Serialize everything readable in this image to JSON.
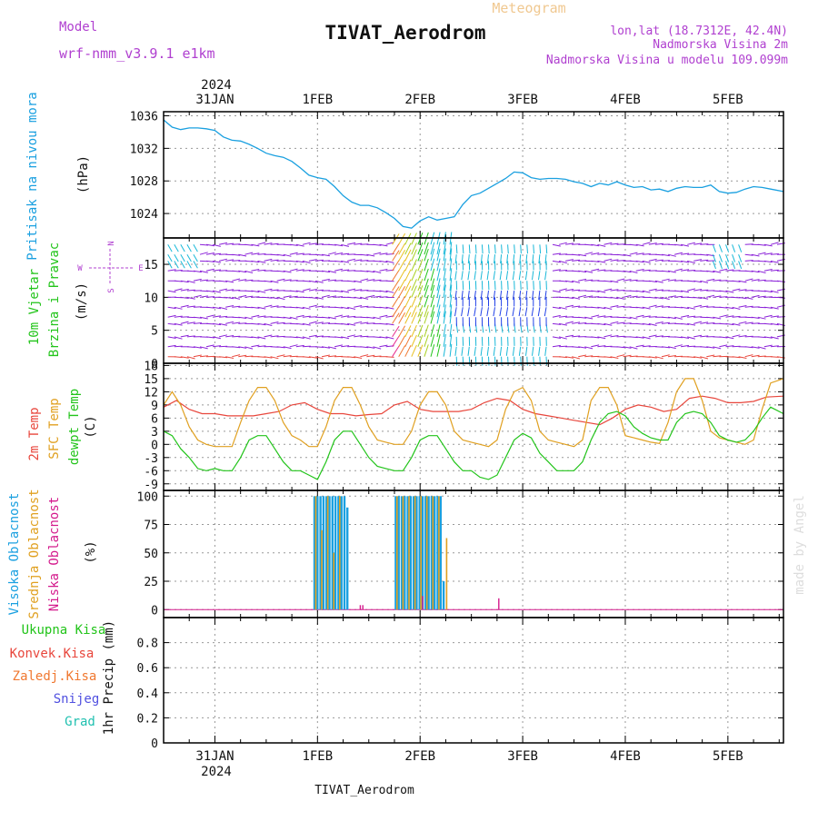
{
  "header": {
    "meteogram_label": "Meteogram",
    "title": "TIVAT_Aerodrom",
    "model_label": "Model",
    "model_value": "wrf-nmm_v3.9.1 e1km",
    "lonlat": "lon,lat (18.7312E, 42.4N)",
    "elevation": "Nadmorska Visina 2m",
    "model_elevation": "Nadmorska Visina u modelu 109.099m",
    "footer_station": "TIVAT_Aerodrom",
    "credit": "made by Angel"
  },
  "colors": {
    "pressure": "#1aa0e0",
    "temp2m": "#e8463c",
    "sfc": "#e0a020",
    "dewpt": "#22c41a",
    "high_cloud": "#1aa0e0",
    "mid_cloud": "#e0a020",
    "low_cloud": "#d41a8c",
    "wind_purple": "#8a20d8",
    "wind_cyan": "#18b8d8",
    "wind_blue": "#2040e8"
  },
  "time_axis": {
    "year": "2024",
    "ticks": [
      "31JAN",
      "1FEB",
      "2FEB",
      "3FEB",
      "4FEB",
      "5FEB"
    ],
    "tick_hours": [
      12,
      36,
      60,
      84,
      108,
      132
    ],
    "range_hours": [
      0,
      145
    ]
  },
  "chart_data": [
    {
      "id": "pressure",
      "type": "line",
      "ylabel_left": "Pritisak na nivou mora",
      "ylabel_unit": "(hPa)",
      "ylim": [
        1021,
        1036.5
      ],
      "yticks": [
        1024,
        1028,
        1032,
        1036
      ],
      "grid": true,
      "series": [
        {
          "x": [
            0,
            2,
            4,
            6,
            8,
            10,
            12,
            14,
            16,
            18,
            20,
            22,
            24,
            26,
            28,
            30,
            32,
            34,
            36,
            38,
            40,
            42,
            44,
            46,
            48,
            50,
            52,
            54,
            56,
            58,
            60,
            62,
            64,
            66,
            68,
            70,
            72,
            74,
            76,
            78,
            80,
            82,
            84,
            86,
            88,
            90,
            92,
            94,
            96,
            98,
            100,
            102,
            104,
            106,
            108,
            110,
            112,
            114,
            116,
            118,
            120,
            122,
            124,
            126,
            128,
            130,
            132,
            134,
            136,
            138,
            140,
            142,
            145
          ],
          "values": [
            1035.5,
            1034.6,
            1034.3,
            1034.5,
            1034.5,
            1034.4,
            1034.2,
            1033.4,
            1033.0,
            1032.9,
            1032.5,
            1032.0,
            1031.4,
            1031.1,
            1030.9,
            1030.4,
            1029.6,
            1028.7,
            1028.4,
            1028.2,
            1027.3,
            1026.2,
            1025.4,
            1025.0,
            1025.0,
            1024.7,
            1024.1,
            1023.4,
            1022.4,
            1022.2,
            1023.1,
            1023.6,
            1023.2,
            1023.4,
            1023.6,
            1025.1,
            1026.2,
            1026.5,
            1027.1,
            1027.7,
            1028.3,
            1029.1,
            1029.0,
            1028.4,
            1028.2,
            1028.3,
            1028.3,
            1028.2,
            1027.9,
            1027.7,
            1027.3,
            1027.7,
            1027.5,
            1027.9,
            1027.5,
            1027.2,
            1027.3,
            1026.9,
            1027.0,
            1026.7,
            1027.1,
            1027.3,
            1027.2,
            1027.2,
            1027.5,
            1026.7,
            1026.5,
            1026.6,
            1027.0,
            1027.3,
            1027.2,
            1027.0,
            1026.7
          ]
        }
      ]
    },
    {
      "id": "wind",
      "type": "scatter",
      "ylabel_left": "10m Vjetar",
      "ylabel_left2": "Brzina i Pravac",
      "ylabel_unit": "(m/s)",
      "compass_n": "N",
      "compass_s": "S",
      "compass_w": "W",
      "compass_e": "E",
      "ylim": [
        0,
        19
      ],
      "yticks": [
        0,
        5,
        10,
        15
      ],
      "grid": true
    },
    {
      "id": "temperature",
      "type": "line",
      "ylabel_1": "2m Temp",
      "ylabel_2": "SFC Temp",
      "ylabel_3": "dewpt Temp",
      "ylabel_unit": "(C)",
      "ylim": [
        -10.5,
        18.5
      ],
      "yticks": [
        -9,
        -6,
        -3,
        0,
        3,
        6,
        9,
        12,
        15,
        18
      ],
      "grid": true,
      "series": [
        {
          "name": "2m Temp",
          "x": [
            0,
            3,
            6,
            9,
            12,
            15,
            18,
            21,
            24,
            27,
            30,
            33,
            36,
            39,
            42,
            45,
            48,
            51,
            54,
            57,
            60,
            63,
            66,
            69,
            72,
            75,
            78,
            81,
            84,
            87,
            90,
            93,
            96,
            99,
            102,
            105,
            108,
            111,
            114,
            117,
            120,
            123,
            126,
            129,
            132,
            135,
            138,
            141,
            145
          ],
          "values": [
            8.5,
            10,
            8,
            7,
            7,
            6.5,
            6.5,
            6.5,
            7,
            7.5,
            9,
            9.5,
            8,
            7,
            7,
            6.5,
            6.8,
            7,
            9,
            9.8,
            8,
            7.5,
            7.5,
            7.5,
            8,
            9.5,
            10.5,
            10,
            8,
            7,
            6.5,
            6,
            5.5,
            5,
            4.5,
            6,
            8,
            9,
            8.5,
            7.5,
            8,
            10.5,
            11,
            10.5,
            9.5,
            9.5,
            9.8,
            10.8,
            11
          ]
        },
        {
          "name": "SFC Temp",
          "x": [
            0,
            2,
            4,
            6,
            8,
            10,
            12,
            14,
            16,
            18,
            20,
            22,
            24,
            26,
            28,
            30,
            32,
            34,
            36,
            38,
            40,
            42,
            44,
            46,
            48,
            50,
            52,
            54,
            56,
            58,
            60,
            62,
            64,
            66,
            68,
            70,
            72,
            74,
            76,
            78,
            80,
            82,
            84,
            86,
            88,
            90,
            92,
            94,
            96,
            98,
            100,
            102,
            104,
            106,
            108,
            110,
            112,
            114,
            116,
            118,
            120,
            122,
            124,
            126,
            128,
            130,
            132,
            134,
            136,
            138,
            140,
            142,
            145
          ],
          "values": [
            9,
            12,
            9,
            4,
            1,
            0,
            -0.5,
            -0.5,
            -0.5,
            5,
            10,
            13,
            13,
            10,
            5,
            2,
            1,
            -0.5,
            -0.5,
            4,
            10,
            13,
            13,
            9,
            4,
            1,
            0.5,
            0,
            0,
            3,
            9,
            12,
            12,
            9,
            3,
            1,
            0.5,
            0,
            -0.5,
            1,
            8,
            12,
            13,
            10,
            3,
            1,
            0.5,
            0,
            -0.5,
            1,
            10,
            13,
            13,
            9,
            2,
            1.5,
            1,
            0.5,
            0.2,
            5,
            12,
            15,
            15,
            10,
            3,
            1.5,
            1,
            0.5,
            0,
            1,
            8,
            14,
            15
          ]
        },
        {
          "name": "dewpt Temp",
          "x": [
            0,
            2,
            4,
            6,
            8,
            10,
            12,
            14,
            16,
            18,
            20,
            22,
            24,
            26,
            28,
            30,
            32,
            34,
            36,
            38,
            40,
            42,
            44,
            46,
            48,
            50,
            52,
            54,
            56,
            58,
            60,
            62,
            64,
            66,
            68,
            70,
            72,
            74,
            76,
            78,
            80,
            82,
            84,
            86,
            88,
            90,
            92,
            94,
            96,
            98,
            100,
            102,
            104,
            106,
            108,
            110,
            112,
            114,
            116,
            118,
            120,
            122,
            124,
            126,
            128,
            130,
            132,
            134,
            136,
            138,
            140,
            142,
            145
          ],
          "values": [
            3,
            2,
            -1,
            -3,
            -5.5,
            -6,
            -5.5,
            -6,
            -6,
            -3,
            1,
            2,
            2,
            -1,
            -4,
            -6,
            -6,
            -7,
            -8,
            -4,
            1,
            3,
            3,
            0,
            -3,
            -5,
            -5.5,
            -6,
            -6,
            -3,
            1,
            2,
            2,
            -1,
            -4,
            -6,
            -6,
            -7.5,
            -8,
            -7,
            -3,
            1,
            2.5,
            1.5,
            -2,
            -4,
            -6,
            -6,
            -6,
            -4,
            1,
            5,
            7,
            7.5,
            6.5,
            4,
            2.5,
            1.5,
            1,
            1,
            5,
            7,
            7.5,
            7,
            5,
            2,
            1,
            0.5,
            1,
            3,
            6,
            8.5,
            7
          ]
        }
      ]
    },
    {
      "id": "cloud",
      "type": "bar",
      "ylabel_1": "Visoka Oblacnost",
      "ylabel_2": "Srednja Oblacnost",
      "ylabel_3": "Niska Oblacnost",
      "ylabel_unit": "(%)",
      "ylim": [
        -7,
        105
      ],
      "yticks": [
        0,
        25,
        50,
        75,
        100
      ],
      "grid": true,
      "series": [
        {
          "name": "Visoka Oblacnost",
          "x": [
            35.3,
            36.0,
            36.7,
            37.4,
            38.1,
            38.8,
            39.5,
            40.2,
            40.9,
            41.6,
            42.3,
            43.0,
            54.3,
            55.0,
            55.7,
            56.4,
            57.1,
            57.8,
            58.5,
            59.2,
            59.9,
            60.6,
            61.3,
            62.0,
            62.7,
            63.4,
            64.1,
            64.8,
            65.5
          ],
          "values": [
            100,
            100,
            100,
            100,
            100,
            100,
            100,
            100,
            100,
            100,
            100,
            90,
            100,
            100,
            100,
            100,
            100,
            100,
            100,
            100,
            100,
            100,
            100,
            100,
            100,
            100,
            100,
            100,
            25
          ]
        },
        {
          "name": "Srednja Oblacnost",
          "x": [
            35.6,
            37.0,
            38.4,
            39.8,
            41.2,
            54.6,
            56.0,
            57.4,
            58.8,
            60.2,
            61.6,
            63.0,
            64.4,
            66.2
          ],
          "values": [
            100,
            70,
            100,
            50,
            100,
            100,
            100,
            100,
            100,
            100,
            100,
            100,
            100,
            63
          ]
        },
        {
          "name": "Niska Oblacnost",
          "x": [
            46.0,
            46.6,
            60.6,
            78.4
          ],
          "values": [
            4,
            4,
            12,
            10
          ]
        }
      ]
    },
    {
      "id": "precip",
      "type": "bar",
      "ylabel_unit": "1hr Precip (mm)",
      "legend_1": "Ukupna Kisa",
      "legend_2": "Konvek.Kisa",
      "legend_3": "Zaledj.Kisa",
      "legend_4": "Snijeg",
      "legend_5": "Grad",
      "ylim": [
        0,
        1
      ],
      "yticks": [
        0,
        0.2,
        0.4,
        0.6,
        0.8
      ],
      "grid": true,
      "series": []
    }
  ]
}
